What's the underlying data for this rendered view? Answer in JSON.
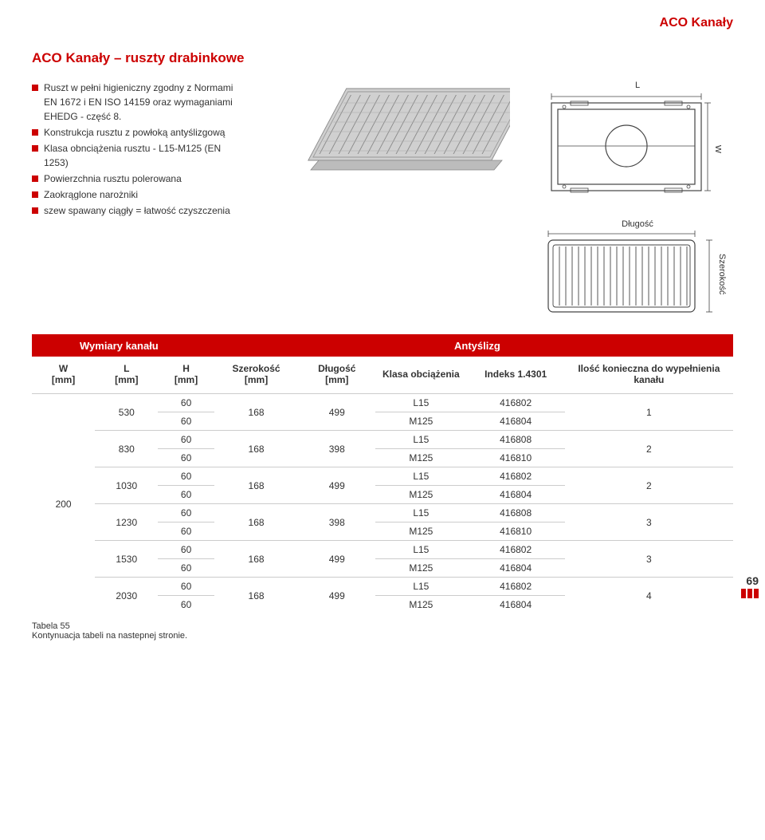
{
  "page_title_top": "ACO Kanały",
  "section_title": "ACO Kanały – ruszty drabinkowe",
  "bullets": [
    "Ruszt w pełni higieniczny zgodny z Normami EN 1672 i EN ISO 14159 oraz wymaganiami EHEDG - część 8.",
    "Konstrukcja rusztu z powłoką antyślizgową",
    "Klasa obnciążenia rusztu - L15-M125 (EN 1253)",
    "Powierzchnia rusztu polerowana",
    "Zaokrąglone narożniki",
    "szew spawany ciągły = łatwość czyszczenia"
  ],
  "top_diagram": {
    "label_L": "L",
    "label_W": "W"
  },
  "front_diagram": {
    "label_len": "Długość",
    "label_wid": "Szerokość"
  },
  "table": {
    "header_left": "Wymiary kanału",
    "header_right": "Antyślizg",
    "columns": [
      "W [mm]",
      "L [mm]",
      "H [mm]",
      "Szerokość [mm]",
      "Długość [mm]",
      "Klasa obciążenia",
      "Indeks 1.4301",
      "Ilość konieczna do wypełnienia kanału"
    ],
    "col_widths": [
      "9%",
      "9%",
      "8%",
      "12%",
      "11%",
      "13%",
      "14%",
      "24%"
    ],
    "W_value": "200",
    "groups": [
      {
        "L": "530",
        "rows": [
          {
            "H": "60",
            "S": "168",
            "D": "499",
            "K": "L15",
            "I": "416802",
            "Q": "1"
          },
          {
            "H": "60",
            "S": "",
            "D": "",
            "K": "M125",
            "I": "416804",
            "Q": ""
          }
        ]
      },
      {
        "L": "830",
        "rows": [
          {
            "H": "60",
            "S": "168",
            "D": "398",
            "K": "L15",
            "I": "416808",
            "Q": "2"
          },
          {
            "H": "60",
            "S": "",
            "D": "",
            "K": "M125",
            "I": "416810",
            "Q": ""
          }
        ]
      },
      {
        "L": "1030",
        "rows": [
          {
            "H": "60",
            "S": "168",
            "D": "499",
            "K": "L15",
            "I": "416802",
            "Q": "2"
          },
          {
            "H": "60",
            "S": "",
            "D": "",
            "K": "M125",
            "I": "416804",
            "Q": ""
          }
        ]
      },
      {
        "L": "1230",
        "rows": [
          {
            "H": "60",
            "S": "168",
            "D": "398",
            "K": "L15",
            "I": "416808",
            "Q": "3"
          },
          {
            "H": "60",
            "S": "",
            "D": "",
            "K": "M125",
            "I": "416810",
            "Q": ""
          }
        ]
      },
      {
        "L": "1530",
        "rows": [
          {
            "H": "60",
            "S": "168",
            "D": "499",
            "K": "L15",
            "I": "416802",
            "Q": "3"
          },
          {
            "H": "60",
            "S": "",
            "D": "",
            "K": "M125",
            "I": "416804",
            "Q": ""
          }
        ]
      },
      {
        "L": "2030",
        "rows": [
          {
            "H": "60",
            "S": "168",
            "D": "499",
            "K": "L15",
            "I": "416802",
            "Q": "4"
          },
          {
            "H": "60",
            "S": "",
            "D": "",
            "K": "M125",
            "I": "416804",
            "Q": ""
          }
        ]
      }
    ]
  },
  "footer": {
    "table_label": "Tabela 55",
    "continuation": "Kontynuacja tabeli na nastepnej stronie.",
    "page_number": "69"
  },
  "colors": {
    "brand_red": "#cc0000",
    "text": "#333333",
    "grid": "#cccccc",
    "diagram_stroke": "#444444",
    "render_fill": "#c8c8c8"
  }
}
